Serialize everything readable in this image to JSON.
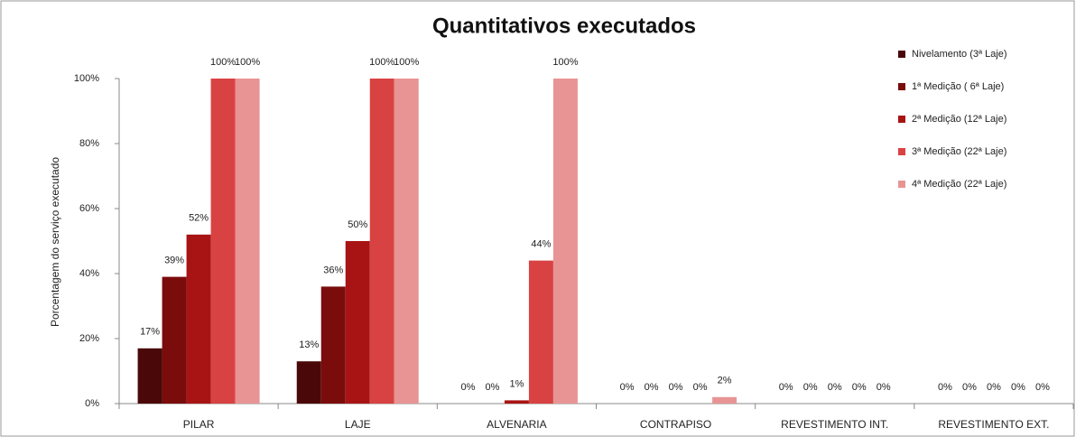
{
  "chart_data": {
    "type": "bar",
    "title": "Quantitativos executados",
    "y_label": "Porcentagem do serviço executado",
    "categories": [
      "PILAR",
      "LAJE",
      "ALVENARIA",
      "CONTRAPISO",
      "REVESTIMENTO INT.",
      "REVESTIMENTO EXT."
    ],
    "series": [
      {
        "name": "Nivelamento (3ª Laje)",
        "color": "#4a0808",
        "values": [
          17,
          13,
          0,
          0,
          0,
          0
        ],
        "value_labels": [
          "17%",
          "13%",
          "0%",
          "0%",
          "0%",
          "0%"
        ]
      },
      {
        "name": "1ª Medição ( 6ª Laje)",
        "color": "#7a0c0c",
        "values": [
          39,
          36,
          0,
          0,
          0,
          0
        ],
        "value_labels": [
          "39%",
          "36%",
          "0%",
          "0%",
          "0%",
          "0%"
        ]
      },
      {
        "name": "2ª Medição (12ª Laje)",
        "color": "#a81414",
        "values": [
          52,
          50,
          1,
          0,
          0,
          0
        ],
        "value_labels": [
          "52%",
          "50%",
          "1%",
          "0%",
          "0%",
          "0%"
        ]
      },
      {
        "name": "3ª Medição (22ª Laje)",
        "color": "#d94242",
        "values": [
          100,
          100,
          44,
          0,
          0,
          0
        ],
        "value_labels": [
          "100%",
          "100%",
          "44%",
          "0%",
          "0%",
          "0%"
        ]
      },
      {
        "name": "4ª Medição (22ª Laje)",
        "color": "#e89494",
        "values": [
          100,
          100,
          100,
          2,
          0,
          0
        ],
        "value_labels": [
          "100%",
          "100%",
          "100%",
          "2%",
          "0%",
          "0%"
        ]
      }
    ],
    "ylim": [
      0,
      100
    ],
    "yticks": [
      {
        "value": 0,
        "label": "0%"
      },
      {
        "value": 20,
        "label": "20%"
      },
      {
        "value": 40,
        "label": "40%"
      },
      {
        "value": 60,
        "label": "60%"
      },
      {
        "value": 80,
        "label": "80%"
      },
      {
        "value": 100,
        "label": "100%"
      }
    ],
    "grid": false,
    "legend": "top-right"
  }
}
